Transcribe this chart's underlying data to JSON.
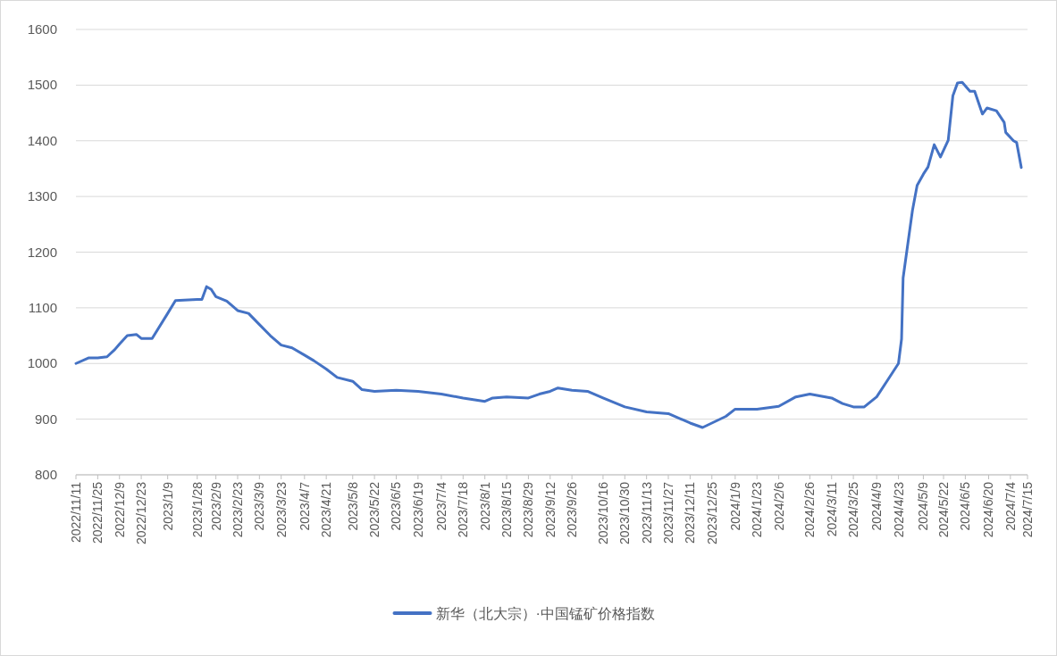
{
  "chart_data": {
    "type": "line",
    "grid": "y",
    "legend": "bottom",
    "ylim": [
      800,
      1600
    ],
    "yticks": [
      800,
      900,
      1000,
      1100,
      1200,
      1300,
      1400,
      1500,
      1600
    ],
    "xlim": [
      "2022-11-11",
      "2024-07-15"
    ],
    "xticks": [
      {
        "value": "2022-11-11",
        "label": "2022/11/11"
      },
      {
        "value": "2022-11-25",
        "label": "2022/11/25"
      },
      {
        "value": "2022-12-09",
        "label": "2022/12/9"
      },
      {
        "value": "2022-12-23",
        "label": "2022/12/23"
      },
      {
        "value": "2023-01-09",
        "label": "2023/1/9"
      },
      {
        "value": "2023-01-28",
        "label": "2023/1/28"
      },
      {
        "value": "2023-02-09",
        "label": "2023/2/9"
      },
      {
        "value": "2023-02-23",
        "label": "2023/2/23"
      },
      {
        "value": "2023-03-09",
        "label": "2023/3/9"
      },
      {
        "value": "2023-03-23",
        "label": "2023/3/23"
      },
      {
        "value": "2023-04-07",
        "label": "2023/4/7"
      },
      {
        "value": "2023-04-21",
        "label": "2023/4/21"
      },
      {
        "value": "2023-05-08",
        "label": "2023/5/8"
      },
      {
        "value": "2023-05-22",
        "label": "2023/5/22"
      },
      {
        "value": "2023-06-05",
        "label": "2023/6/5"
      },
      {
        "value": "2023-06-19",
        "label": "2023/6/19"
      },
      {
        "value": "2023-07-04",
        "label": "2023/7/4"
      },
      {
        "value": "2023-07-18",
        "label": "2023/7/18"
      },
      {
        "value": "2023-08-01",
        "label": "2023/8/1"
      },
      {
        "value": "2023-08-15",
        "label": "2023/8/15"
      },
      {
        "value": "2023-08-29",
        "label": "2023/8/29"
      },
      {
        "value": "2023-09-12",
        "label": "2023/9/12"
      },
      {
        "value": "2023-09-26",
        "label": "2023/9/26"
      },
      {
        "value": "2023-10-16",
        "label": "2023/10/16"
      },
      {
        "value": "2023-10-30",
        "label": "2023/10/30"
      },
      {
        "value": "2023-11-13",
        "label": "2023/11/13"
      },
      {
        "value": "2023-11-27",
        "label": "2023/11/27"
      },
      {
        "value": "2023-12-11",
        "label": "2023/12/11"
      },
      {
        "value": "2023-12-25",
        "label": "2023/12/25"
      },
      {
        "value": "2024-01-09",
        "label": "2024/1/9"
      },
      {
        "value": "2024-01-23",
        "label": "2024/1/23"
      },
      {
        "value": "2024-02-06",
        "label": "2024/2/6"
      },
      {
        "value": "2024-02-26",
        "label": "2024/2/26"
      },
      {
        "value": "2024-03-11",
        "label": "2024/3/11"
      },
      {
        "value": "2024-03-25",
        "label": "2024/3/25"
      },
      {
        "value": "2024-04-09",
        "label": "2024/4/9"
      },
      {
        "value": "2024-04-23",
        "label": "2024/4/23"
      },
      {
        "value": "2024-05-09",
        "label": "2024/5/9"
      },
      {
        "value": "2024-05-22",
        "label": "2024/5/22"
      },
      {
        "value": "2024-06-05",
        "label": "2024/6/5"
      },
      {
        "value": "2024-06-20",
        "label": "2024/6/20"
      },
      {
        "value": "2024-07-04",
        "label": "2024/7/4"
      },
      {
        "value": "2024-07-15",
        "label": "2024/7/15"
      }
    ],
    "x": [
      "2022-11-11",
      "2022-11-19",
      "2022-11-25",
      "2022-12-01",
      "2022-12-06",
      "2022-12-09",
      "2022-12-14",
      "2022-12-20",
      "2022-12-23",
      "2022-12-30",
      "2023-01-09",
      "2023-01-14",
      "2023-01-28",
      "2023-01-31",
      "2023-02-03",
      "2023-02-06",
      "2023-02-09",
      "2023-02-16",
      "2023-02-23",
      "2023-03-02",
      "2023-03-09",
      "2023-03-16",
      "2023-03-23",
      "2023-03-30",
      "2023-04-07",
      "2023-04-13",
      "2023-04-21",
      "2023-04-28",
      "2023-05-08",
      "2023-05-14",
      "2023-05-22",
      "2023-06-05",
      "2023-06-19",
      "2023-07-04",
      "2023-07-18",
      "2023-08-01",
      "2023-08-06",
      "2023-08-15",
      "2023-08-29",
      "2023-09-05",
      "2023-09-12",
      "2023-09-17",
      "2023-09-26",
      "2023-10-06",
      "2023-10-16",
      "2023-10-23",
      "2023-10-30",
      "2023-11-13",
      "2023-11-27",
      "2023-12-11",
      "2023-12-19",
      "2023-12-25",
      "2024-01-03",
      "2024-01-09",
      "2024-01-23",
      "2024-02-06",
      "2024-02-17",
      "2024-02-26",
      "2024-03-11",
      "2024-03-18",
      "2024-03-25",
      "2024-04-01",
      "2024-04-09",
      "2024-04-16",
      "2024-04-23",
      "2024-04-25",
      "2024-04-26",
      "2024-05-02",
      "2024-05-05",
      "2024-05-09",
      "2024-05-12",
      "2024-05-16",
      "2024-05-20",
      "2024-05-25",
      "2024-05-28",
      "2024-05-31",
      "2024-06-03",
      "2024-06-08",
      "2024-06-11",
      "2024-06-16",
      "2024-06-19",
      "2024-06-25",
      "2024-06-30",
      "2024-07-01",
      "2024-07-06",
      "2024-07-08",
      "2024-07-11"
    ],
    "series": [
      {
        "name": "新华（北大宗）·中国锰矿价格指数",
        "color": "#4472c4",
        "values": [
          1000,
          1010,
          1010,
          1012,
          1025,
          1035,
          1050,
          1052,
          1045,
          1045,
          1090,
          1113,
          1115,
          1115,
          1138,
          1133,
          1120,
          1112,
          1095,
          1090,
          1070,
          1050,
          1033,
          1028,
          1015,
          1005,
          990,
          975,
          968,
          953,
          950,
          952,
          950,
          945,
          938,
          932,
          938,
          940,
          938,
          945,
          950,
          956,
          952,
          950,
          938,
          930,
          922,
          913,
          910,
          893,
          885,
          893,
          905,
          918,
          918,
          923,
          940,
          945,
          938,
          928,
          922,
          922,
          940,
          970,
          1000,
          1044,
          1154,
          1275,
          1320,
          1340,
          1353,
          1393,
          1371,
          1401,
          1481,
          1504,
          1505,
          1489,
          1489,
          1448,
          1459,
          1454,
          1433,
          1415,
          1400,
          1397,
          1352
        ]
      }
    ]
  }
}
